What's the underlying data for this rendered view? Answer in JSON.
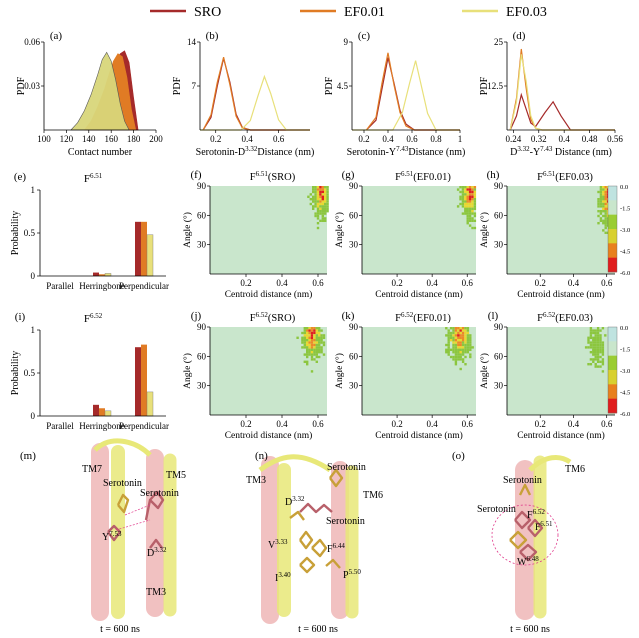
{
  "legend": {
    "entries": [
      {
        "label": "SRO",
        "color": "#a52a2a"
      },
      {
        "label": "EF0.01",
        "color": "#e07b24"
      },
      {
        "label": "EF0.03",
        "color": "#e8e07a"
      }
    ]
  },
  "colorbar": {
    "ticks": [
      "0.0",
      "-1.5",
      "-3.0",
      "-4.5",
      "-6.0"
    ],
    "colors": [
      "#bfe3e0",
      "#c9e6cc",
      "#9acd32",
      "#d8d030",
      "#e8801e",
      "#e01e1e"
    ]
  },
  "heatmap_colors": {
    "background": "#c9e6cc",
    "green": "#8cc63f",
    "yellow": "#e8d830",
    "orange": "#ec8a28",
    "red": "#e02020"
  },
  "structures": {
    "m": {
      "panel": "(m)",
      "time": "t = 600 ns",
      "labels": [
        "TM7",
        "Serotonin",
        "TM5",
        "Serotonin",
        "Y",
        "7.53",
        "D",
        "3.32",
        "TM3"
      ]
    },
    "n": {
      "panel": "(n)",
      "time": "t = 600 ns",
      "labels": [
        "TM3",
        "Serotonin",
        "TM6",
        "D",
        "3.32",
        "Serotonin",
        "V",
        "3.33",
        "F",
        "6.44",
        "I",
        "3.40",
        "P",
        "5.50"
      ]
    },
    "o": {
      "panel": "(o)",
      "time": "t = 600 ns",
      "labels": [
        "Serotonin",
        "TM6",
        "Serotonin",
        "F",
        "6.52",
        "F",
        "6.51",
        "W",
        "6.48"
      ]
    }
  },
  "chart_data": [
    {
      "id": "a",
      "panel": "(a)",
      "type": "area",
      "xlabel": "Contact number",
      "ylabel": "PDF",
      "xlim": [
        100,
        200
      ],
      "ylim": [
        0,
        0.06
      ],
      "xticks": [
        "100",
        "120",
        "140",
        "160",
        "180",
        "200"
      ],
      "yticks": [
        "0.03",
        "0.06"
      ],
      "series": [
        {
          "name": "SRO",
          "x": [
            138,
            144,
            150,
            156,
            160,
            164,
            168,
            172,
            176,
            180,
            184
          ],
          "y": [
            0,
            0.005,
            0.014,
            0.026,
            0.036,
            0.046,
            0.052,
            0.054,
            0.046,
            0.022,
            0
          ]
        },
        {
          "name": "EF0.01",
          "x": [
            136,
            142,
            148,
            154,
            158,
            162,
            166,
            170,
            174,
            178,
            182
          ],
          "y": [
            0,
            0.006,
            0.016,
            0.028,
            0.038,
            0.047,
            0.052,
            0.05,
            0.036,
            0.014,
            0
          ]
        },
        {
          "name": "EF0.03",
          "x": [
            124,
            130,
            136,
            142,
            148,
            152,
            156,
            160,
            164,
            168,
            172,
            176
          ],
          "y": [
            0,
            0.005,
            0.013,
            0.024,
            0.038,
            0.048,
            0.053,
            0.047,
            0.034,
            0.018,
            0.006,
            0
          ]
        }
      ]
    },
    {
      "id": "b",
      "panel": "(b)",
      "type": "line",
      "xlabel": "Serotonin-D3.32 Distance (nm)",
      "ylabel": "PDF",
      "xlim": [
        0.1,
        0.8
      ],
      "ylim": [
        0,
        14
      ],
      "xticks": [
        "0.2",
        "0.4",
        "0.6"
      ],
      "yticks": [
        "7",
        "14"
      ],
      "series": [
        {
          "name": "SRO",
          "x": [
            0.12,
            0.17,
            0.21,
            0.25,
            0.29,
            0.33,
            0.37,
            0.42,
            0.8
          ],
          "y": [
            0,
            2,
            7,
            11.4,
            7.6,
            2.5,
            0.4,
            0,
            0
          ]
        },
        {
          "name": "EF0.01",
          "x": [
            0.12,
            0.17,
            0.21,
            0.25,
            0.29,
            0.33,
            0.37,
            0.42,
            0.8
          ],
          "y": [
            0,
            2.4,
            7.6,
            11.6,
            7.2,
            2.2,
            0.3,
            0,
            0
          ]
        },
        {
          "name": "EF0.03",
          "x": [
            0.1,
            0.36,
            0.42,
            0.47,
            0.51,
            0.55,
            0.6,
            0.65,
            0.8
          ],
          "y": [
            0,
            0,
            1.5,
            5.5,
            8.5,
            5.8,
            1.6,
            0,
            0
          ]
        }
      ]
    },
    {
      "id": "c",
      "panel": "(c)",
      "type": "line",
      "xlabel": "Serotonin-Y7.43 Distance (nm)",
      "ylabel": "PDF",
      "xlim": [
        0.1,
        1.0
      ],
      "ylim": [
        0,
        9
      ],
      "xticks": [
        "0.2",
        "0.4",
        "0.6",
        "0.8",
        "1"
      ],
      "yticks": [
        "4.5",
        "9"
      ],
      "series": [
        {
          "name": "SRO",
          "x": [
            0.22,
            0.3,
            0.35,
            0.4,
            0.45,
            0.5,
            0.55,
            0.62,
            1.0
          ],
          "y": [
            0,
            1,
            4.2,
            7.4,
            4.8,
            2,
            0.6,
            0,
            0
          ]
        },
        {
          "name": "EF0.01",
          "x": [
            0.22,
            0.3,
            0.35,
            0.4,
            0.45,
            0.5,
            0.55,
            0.62,
            1.0
          ],
          "y": [
            0,
            1.3,
            4.8,
            7.9,
            4.6,
            1.8,
            0.4,
            0,
            0
          ]
        },
        {
          "name": "EF0.03",
          "x": [
            0.1,
            0.44,
            0.52,
            0.58,
            0.63,
            0.68,
            0.73,
            0.8,
            1.0
          ],
          "y": [
            0,
            0,
            1.8,
            4.8,
            7.1,
            4.4,
            1.7,
            0,
            0
          ]
        }
      ]
    },
    {
      "id": "d",
      "panel": "(d)",
      "type": "line",
      "xlabel": "D3.32-Y7.43 Distance (nm)",
      "ylabel": "PDF",
      "xlim": [
        0.22,
        0.56
      ],
      "ylim": [
        0,
        25
      ],
      "xticks": [
        "0.24",
        "0.32",
        "0.4",
        "0.48",
        "0.56"
      ],
      "yticks": [
        "12.5",
        "25"
      ],
      "series": [
        {
          "name": "SRO",
          "x": [
            0.23,
            0.25,
            0.265,
            0.28,
            0.295,
            0.31,
            0.34,
            0.365,
            0.39,
            0.42,
            0.56
          ],
          "y": [
            0,
            4,
            10,
            6,
            2,
            1,
            5,
            8,
            4,
            0,
            0
          ]
        },
        {
          "name": "EF0.01",
          "x": [
            0.23,
            0.25,
            0.265,
            0.28,
            0.295,
            0.31,
            0.33,
            0.56
          ],
          "y": [
            0,
            9,
            23,
            12,
            3,
            0.5,
            0,
            0
          ]
        },
        {
          "name": "EF0.03",
          "x": [
            0.23,
            0.25,
            0.265,
            0.28,
            0.295,
            0.31,
            0.33,
            0.56
          ],
          "y": [
            0,
            8,
            21.5,
            14,
            4,
            0.5,
            0,
            0
          ]
        }
      ]
    },
    {
      "id": "e",
      "panel": "(e)",
      "type": "bar",
      "title": "F6.51",
      "ylabel": "Probability",
      "ylim": [
        0,
        1
      ],
      "categories": [
        "Parallel",
        "Herringbone",
        "Perpendicular"
      ],
      "yticks": [
        "0",
        "0.5",
        "1"
      ],
      "series": [
        {
          "name": "SRO",
          "values": [
            0,
            0.04,
            0.63
          ]
        },
        {
          "name": "EF0.01",
          "values": [
            0,
            0.02,
            0.63
          ]
        },
        {
          "name": "EF0.03",
          "values": [
            0,
            0.03,
            0.48
          ]
        }
      ]
    },
    {
      "id": "i",
      "panel": "(i)",
      "type": "bar",
      "title": "F6.52",
      "ylabel": "Probability",
      "ylim": [
        0,
        1
      ],
      "categories": [
        "Parallel",
        "Herringbone",
        "Perpendicular"
      ],
      "yticks": [
        "0",
        "0.5",
        "1"
      ],
      "series": [
        {
          "name": "SRO",
          "values": [
            0,
            0.13,
            0.8
          ]
        },
        {
          "name": "EF0.01",
          "values": [
            0,
            0.09,
            0.83
          ]
        },
        {
          "name": "EF0.03",
          "values": [
            0,
            0.06,
            0.28
          ]
        }
      ]
    },
    {
      "id": "f",
      "panel": "(f)",
      "type": "heatmap",
      "title": "F6.51(SRO)",
      "xlabel": "Centroid distance (nm)",
      "ylabel": "Angle (°)",
      "xlim": [
        0,
        0.65
      ],
      "ylim": [
        0,
        90
      ],
      "xticks": [
        "0.2",
        "0.4",
        "0.6"
      ],
      "yticks": [
        "30",
        "60",
        "90"
      ],
      "region": {
        "xmin": 0.5,
        "xmax": 0.65,
        "ymin": 35,
        "ymax": 90,
        "peak_x": 0.61,
        "peak_y": 86
      }
    },
    {
      "id": "g",
      "panel": "(g)",
      "type": "heatmap",
      "title": "F6.51(EF0.01)",
      "xlabel": "Centroid distance (nm)",
      "ylabel": "Angle (°)",
      "xlim": [
        0,
        0.65
      ],
      "ylim": [
        0,
        90
      ],
      "xticks": [
        "0.2",
        "0.4",
        "0.6"
      ],
      "yticks": [
        "30",
        "60",
        "90"
      ],
      "region": {
        "xmin": 0.5,
        "xmax": 0.65,
        "ymin": 35,
        "ymax": 90,
        "peak_x": 0.61,
        "peak_y": 85
      }
    },
    {
      "id": "h",
      "panel": "(h)",
      "type": "heatmap",
      "title": "F6.51(EF0.03)",
      "xlabel": "Centroid distance (nm)",
      "ylabel": "Angle (°)",
      "xlim": [
        0,
        0.65
      ],
      "ylim": [
        0,
        90
      ],
      "xticks": [
        "0.2",
        "0.4",
        "0.6"
      ],
      "yticks": [
        "30",
        "60",
        "90"
      ],
      "region": {
        "xmin": 0.5,
        "xmax": 0.65,
        "ymin": 25,
        "ymax": 90,
        "peak_x": 0.6,
        "peak_y": 82
      }
    },
    {
      "id": "j",
      "panel": "(j)",
      "type": "heatmap",
      "title": "F6.52(SRO)",
      "xlabel": "Centroid distance (nm)",
      "ylabel": "Angle (°)",
      "xlim": [
        0,
        0.65
      ],
      "ylim": [
        0,
        90
      ],
      "xticks": [
        "0.2",
        "0.4",
        "0.6"
      ],
      "yticks": [
        "30",
        "60",
        "90"
      ],
      "region": {
        "xmin": 0.48,
        "xmax": 0.65,
        "ymin": 40,
        "ymax": 90,
        "peak_x": 0.56,
        "peak_y": 82
      }
    },
    {
      "id": "k",
      "panel": "(k)",
      "type": "heatmap",
      "title": "F6.52(EF0.01)",
      "xlabel": "Centroid distance (nm)",
      "ylabel": "Angle (°)",
      "xlim": [
        0,
        0.65
      ],
      "ylim": [
        0,
        90
      ],
      "xticks": [
        "0.2",
        "0.4",
        "0.6"
      ],
      "yticks": [
        "30",
        "60",
        "90"
      ],
      "region": {
        "xmin": 0.46,
        "xmax": 0.65,
        "ymin": 40,
        "ymax": 90,
        "peak_x": 0.55,
        "peak_y": 82
      }
    },
    {
      "id": "l",
      "panel": "(l)",
      "type": "heatmap",
      "title": "F6.52(EF0.03)",
      "xlabel": "Centroid distance (nm)",
      "ylabel": "Angle (°)",
      "xlim": [
        0,
        0.65
      ],
      "ylim": [
        0,
        90
      ],
      "xticks": [
        "0.2",
        "0.4",
        "0.6"
      ],
      "yticks": [
        "30",
        "60",
        "90"
      ],
      "region": {
        "xmin": 0.44,
        "xmax": 0.62,
        "ymin": 30,
        "ymax": 90,
        "peak_x": 0.53,
        "peak_y": 70
      }
    }
  ]
}
